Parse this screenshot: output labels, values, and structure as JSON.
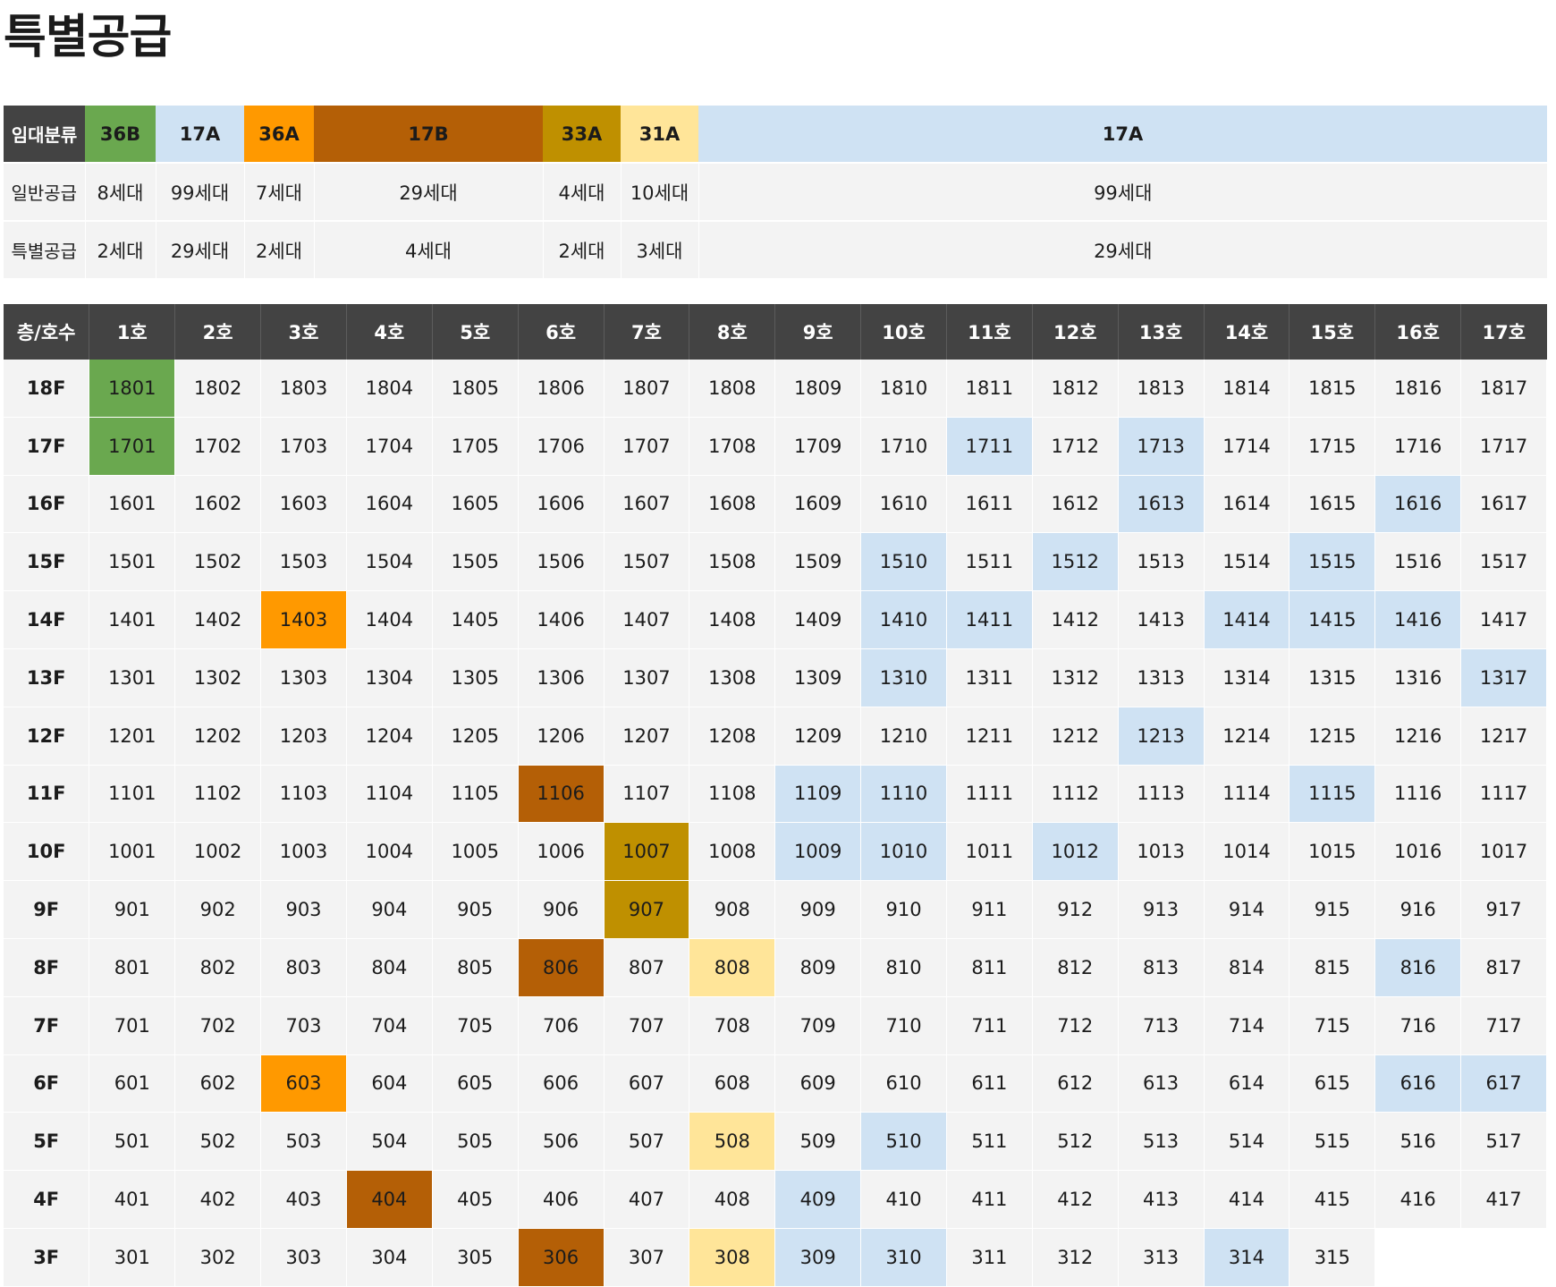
{
  "title": "특별공급",
  "colors": {
    "header_bg": "#434343",
    "cell_bg": "#f3f3f3",
    "36B": "#6aa84f",
    "17A": "#cfe2f3",
    "36A": "#ff9900",
    "17B": "#b45f06",
    "33A": "#bf9000",
    "31A": "#ffe599"
  },
  "summary": {
    "row_labels": [
      "임대분류",
      "일반공급",
      "특별공급"
    ],
    "columns": [
      {
        "type": "36B",
        "general": "8세대",
        "special": "2세대"
      },
      {
        "type": "17A",
        "general": "99세대",
        "special": "29세대"
      },
      {
        "type": "36A",
        "general": "7세대",
        "special": "2세대"
      },
      {
        "type": "17B",
        "general": "29세대",
        "special": "4세대"
      },
      {
        "type": "33A",
        "general": "4세대",
        "special": "2세대"
      },
      {
        "type": "31A",
        "general": "10세대",
        "special": "3세대"
      },
      {
        "type": "17A",
        "general": "99세대",
        "special": "29세대"
      }
    ]
  },
  "grid": {
    "corner_label": "층/호수",
    "unit_headers": [
      "1호",
      "2호",
      "3호",
      "4호",
      "5호",
      "6호",
      "7호",
      "8호",
      "9호",
      "10호",
      "11호",
      "12호",
      "13호",
      "14호",
      "15호",
      "16호",
      "17호"
    ],
    "floors": [
      {
        "label": "18F",
        "units": [
          "1801",
          "1802",
          "1803",
          "1804",
          "1805",
          "1806",
          "1807",
          "1808",
          "1809",
          "1810",
          "1811",
          "1812",
          "1813",
          "1814",
          "1815",
          "1816",
          "1817"
        ]
      },
      {
        "label": "17F",
        "units": [
          "1701",
          "1702",
          "1703",
          "1704",
          "1705",
          "1706",
          "1707",
          "1708",
          "1709",
          "1710",
          "1711",
          "1712",
          "1713",
          "1714",
          "1715",
          "1716",
          "1717"
        ]
      },
      {
        "label": "16F",
        "units": [
          "1601",
          "1602",
          "1603",
          "1604",
          "1605",
          "1606",
          "1607",
          "1608",
          "1609",
          "1610",
          "1611",
          "1612",
          "1613",
          "1614",
          "1615",
          "1616",
          "1617"
        ]
      },
      {
        "label": "15F",
        "units": [
          "1501",
          "1502",
          "1503",
          "1504",
          "1505",
          "1506",
          "1507",
          "1508",
          "1509",
          "1510",
          "1511",
          "1512",
          "1513",
          "1514",
          "1515",
          "1516",
          "1517"
        ]
      },
      {
        "label": "14F",
        "units": [
          "1401",
          "1402",
          "1403",
          "1404",
          "1405",
          "1406",
          "1407",
          "1408",
          "1409",
          "1410",
          "1411",
          "1412",
          "1413",
          "1414",
          "1415",
          "1416",
          "1417"
        ]
      },
      {
        "label": "13F",
        "units": [
          "1301",
          "1302",
          "1303",
          "1304",
          "1305",
          "1306",
          "1307",
          "1308",
          "1309",
          "1310",
          "1311",
          "1312",
          "1313",
          "1314",
          "1315",
          "1316",
          "1317"
        ]
      },
      {
        "label": "12F",
        "units": [
          "1201",
          "1202",
          "1203",
          "1204",
          "1205",
          "1206",
          "1207",
          "1208",
          "1209",
          "1210",
          "1211",
          "1212",
          "1213",
          "1214",
          "1215",
          "1216",
          "1217"
        ]
      },
      {
        "label": "11F",
        "units": [
          "1101",
          "1102",
          "1103",
          "1104",
          "1105",
          "1106",
          "1107",
          "1108",
          "1109",
          "1110",
          "1111",
          "1112",
          "1113",
          "1114",
          "1115",
          "1116",
          "1117"
        ]
      },
      {
        "label": "10F",
        "units": [
          "1001",
          "1002",
          "1003",
          "1004",
          "1005",
          "1006",
          "1007",
          "1008",
          "1009",
          "1010",
          "1011",
          "1012",
          "1013",
          "1014",
          "1015",
          "1016",
          "1017"
        ]
      },
      {
        "label": "9F",
        "units": [
          "901",
          "902",
          "903",
          "904",
          "905",
          "906",
          "907",
          "908",
          "909",
          "910",
          "911",
          "912",
          "913",
          "914",
          "915",
          "916",
          "917"
        ]
      },
      {
        "label": "8F",
        "units": [
          "801",
          "802",
          "803",
          "804",
          "805",
          "806",
          "807",
          "808",
          "809",
          "810",
          "811",
          "812",
          "813",
          "814",
          "815",
          "816",
          "817"
        ]
      },
      {
        "label": "7F",
        "units": [
          "701",
          "702",
          "703",
          "704",
          "705",
          "706",
          "707",
          "708",
          "709",
          "710",
          "711",
          "712",
          "713",
          "714",
          "715",
          "716",
          "717"
        ]
      },
      {
        "label": "6F",
        "units": [
          "601",
          "602",
          "603",
          "604",
          "605",
          "606",
          "607",
          "608",
          "609",
          "610",
          "611",
          "612",
          "613",
          "614",
          "615",
          "616",
          "617"
        ]
      },
      {
        "label": "5F",
        "units": [
          "501",
          "502",
          "503",
          "504",
          "505",
          "506",
          "507",
          "508",
          "509",
          "510",
          "511",
          "512",
          "513",
          "514",
          "515",
          "516",
          "517"
        ]
      },
      {
        "label": "4F",
        "units": [
          "401",
          "402",
          "403",
          "404",
          "405",
          "406",
          "407",
          "408",
          "409",
          "410",
          "411",
          "412",
          "413",
          "414",
          "415",
          "416",
          "417"
        ]
      },
      {
        "label": "3F",
        "units": [
          "301",
          "302",
          "303",
          "304",
          "305",
          "306",
          "307",
          "308",
          "309",
          "310",
          "311",
          "312",
          "313",
          "314",
          "315",
          "",
          ""
        ]
      }
    ],
    "highlights": {
      "1801": "36B",
      "1701": "36B",
      "1711": "17A",
      "1713": "17A",
      "1613": "17A",
      "1616": "17A",
      "1510": "17A",
      "1512": "17A",
      "1515": "17A",
      "1410": "17A",
      "1411": "17A",
      "1414": "17A",
      "1415": "17A",
      "1416": "17A",
      "1310": "17A",
      "1317": "17A",
      "1213": "17A",
      "1109": "17A",
      "1110": "17A",
      "1115": "17A",
      "1009": "17A",
      "1010": "17A",
      "1012": "17A",
      "816": "17A",
      "616": "17A",
      "617": "17A",
      "510": "17A",
      "409": "17A",
      "309": "17A",
      "310": "17A",
      "314": "17A",
      "1403": "36A",
      "603": "36A",
      "1106": "17B",
      "806": "17B",
      "404": "17B",
      "306": "17B",
      "1007": "33A",
      "907": "33A",
      "808": "31A",
      "508": "31A",
      "308": "31A"
    }
  }
}
